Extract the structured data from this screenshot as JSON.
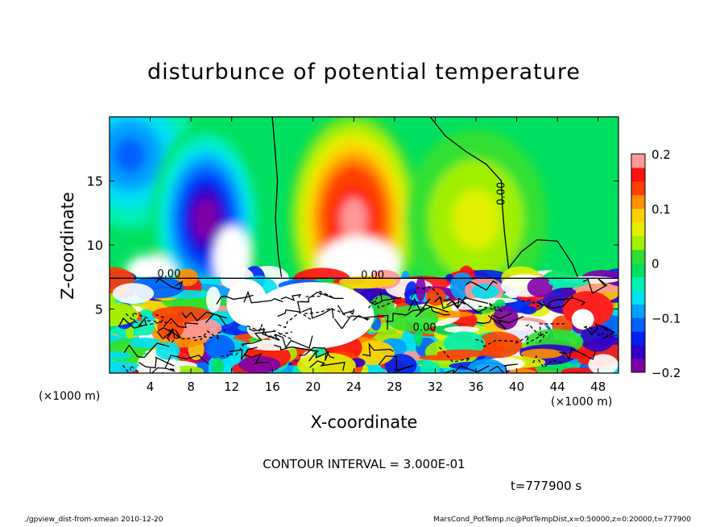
{
  "chart_data": {
    "type": "heatmap",
    "title": "disturbunce of potential temperature",
    "xlabel": "X-coordinate",
    "ylabel": "Z-coordinate",
    "x_unit_label": "(×1000 m)",
    "xlim": [
      0,
      50
    ],
    "ylim": [
      0,
      20
    ],
    "x_ticks": [
      4,
      8,
      12,
      16,
      20,
      24,
      28,
      32,
      36,
      40,
      44,
      48
    ],
    "y_ticks": [
      5,
      10,
      15
    ],
    "colorbar": {
      "range": [
        -0.2,
        0.2
      ],
      "tick_values": [
        0.2,
        0.1,
        0,
        -0.1,
        -0.2
      ],
      "tick_labels": [
        "0.2",
        "0.1",
        "0",
        "−0.1",
        "−0.2"
      ],
      "colors": [
        "#7f00a8",
        "#3000c8",
        "#0020f0",
        "#0060ff",
        "#00a0ff",
        "#00e0f0",
        "#00f0b0",
        "#00e060",
        "#30e030",
        "#a0f000",
        "#e0f000",
        "#ffd000",
        "#ff9000",
        "#ff4000",
        "#ff1010",
        "#ff9898"
      ]
    },
    "contour_interval": "CONTOUR INTERVAL = 3.000E-01",
    "contour_labels": [
      "0.00",
      "0.00",
      "0.00",
      "0.00"
    ],
    "features": [
      {
        "name": "cold anomaly",
        "x": 9,
        "z": 11,
        "value": -0.2
      },
      {
        "name": "warm anomaly",
        "x": 24,
        "z": 11,
        "value": 0.2
      },
      {
        "name": "cold anomaly",
        "x": 1,
        "z": 18,
        "value": -0.12
      },
      {
        "name": "warm anomaly",
        "x": 47,
        "z": 5,
        "value": 0.2
      }
    ],
    "zero_contour_x": [
      16.5,
      31.5,
      39,
      44.5
    ],
    "boundary_layer_top_z": 7.5
  },
  "annotations": {
    "time": "t=777900 s",
    "footer_left": "./gpview_dist-from-xmean  2010-12-20",
    "footer_right": "MarsCond_PotTemp.nc@PotTempDist,x=0:50000,z=0:20000,t=777900"
  },
  "colors": {
    "background": "#ffffff",
    "frame": "#000000",
    "contour": "#000000"
  }
}
